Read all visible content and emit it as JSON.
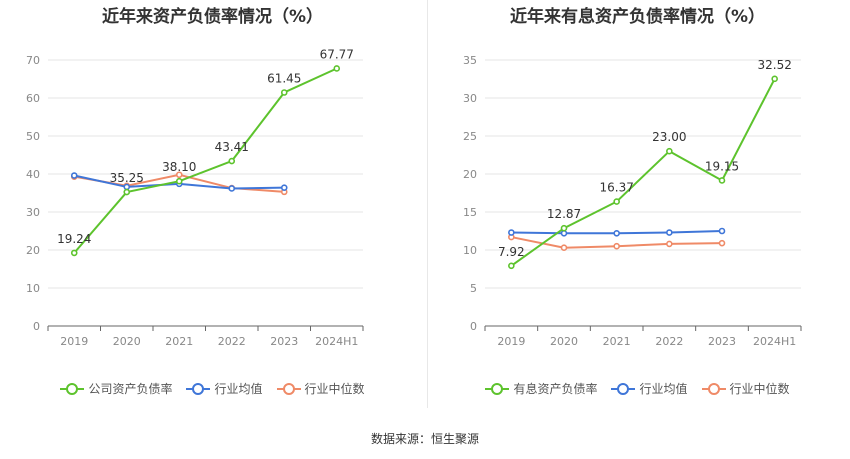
{
  "source": "数据来源：恒生聚源",
  "chart_data": [
    {
      "type": "line",
      "title": "近年来资产负债率情况（%）",
      "categories": [
        "2019",
        "2020",
        "2021",
        "2022",
        "2023",
        "2024H1"
      ],
      "ylim": [
        0,
        70
      ],
      "yticks": [
        0,
        10,
        20,
        30,
        40,
        50,
        60,
        70
      ],
      "grid": true,
      "legend_position": "bottom",
      "series": [
        {
          "name": "公司资产负债率",
          "color": "#5dc32d",
          "values": [
            19.24,
            35.25,
            38.1,
            43.41,
            61.45,
            67.77
          ],
          "labels": [
            "19.24",
            "35.25",
            "38.10",
            "43.41",
            "61.45",
            "67.77"
          ]
        },
        {
          "name": "行业均值",
          "color": "#3f76d8",
          "values": [
            39.6,
            36.6,
            37.4,
            36.2,
            36.4,
            null
          ]
        },
        {
          "name": "行业中位数",
          "color": "#ef8a67",
          "values": [
            39.3,
            36.9,
            39.8,
            36.3,
            35.3,
            null
          ]
        }
      ]
    },
    {
      "type": "line",
      "title": "近年来有息资产负债率情况（%）",
      "categories": [
        "2019",
        "2020",
        "2021",
        "2022",
        "2023",
        "2024H1"
      ],
      "ylim": [
        0,
        35
      ],
      "yticks": [
        0,
        5,
        10,
        15,
        20,
        25,
        30,
        35
      ],
      "grid": true,
      "legend_position": "bottom",
      "series": [
        {
          "name": "有息资产负债率",
          "color": "#5dc32d",
          "values": [
            7.92,
            12.87,
            16.37,
            23.0,
            19.15,
            32.52
          ],
          "labels": [
            "7.92",
            "12.87",
            "16.37",
            "23.00",
            "19.15",
            "32.52"
          ]
        },
        {
          "name": "行业均值",
          "color": "#3f76d8",
          "values": [
            12.3,
            12.2,
            12.2,
            12.3,
            12.5,
            null
          ]
        },
        {
          "name": "行业中位数",
          "color": "#ef8a67",
          "values": [
            11.7,
            10.3,
            10.5,
            10.8,
            10.9,
            null
          ]
        }
      ]
    }
  ]
}
